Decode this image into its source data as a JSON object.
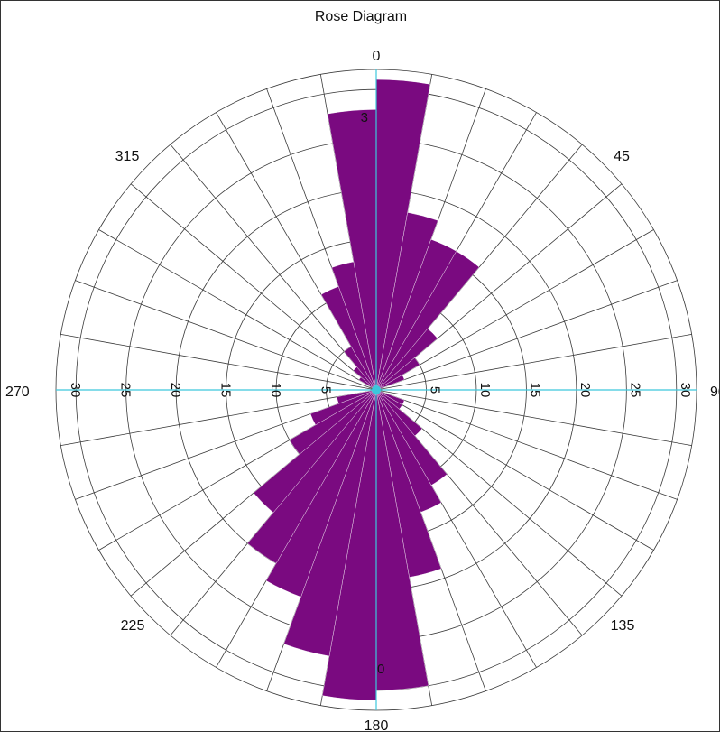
{
  "chart_data": {
    "type": "rose",
    "title": "Rose Diagram",
    "angle_labels": [
      "0",
      "45",
      "90",
      "135",
      "180",
      "225",
      "270",
      "315"
    ],
    "radial_max": 32,
    "radial_ticks": [
      5,
      10,
      15,
      20,
      25,
      30
    ],
    "radial_tick_labels": [
      "5",
      "10",
      "15",
      "20",
      "25",
      "30"
    ],
    "sector_width_deg": 10,
    "sector_start_deg": [
      0,
      10,
      20,
      30,
      40,
      50,
      60,
      70,
      80,
      90,
      100,
      110,
      120,
      130,
      140,
      150,
      160,
      170,
      180,
      190,
      200,
      210,
      220,
      230,
      240,
      250,
      260,
      270,
      280,
      290,
      300,
      310,
      320,
      330,
      340,
      350
    ],
    "values": [
      31,
      18,
      16,
      16,
      8,
      5,
      3,
      0,
      0,
      0,
      0,
      3,
      3,
      6,
      11,
      13,
      19,
      30,
      31,
      27,
      22,
      20,
      16,
      10,
      7,
      4,
      0,
      0,
      0,
      0,
      2,
      3,
      5,
      11,
      13,
      28
    ],
    "edge_labels": [
      "3",
      "0"
    ],
    "petal_color": "#7a0a80",
    "center_axis_color": "#3cc8dc",
    "grid": true
  }
}
